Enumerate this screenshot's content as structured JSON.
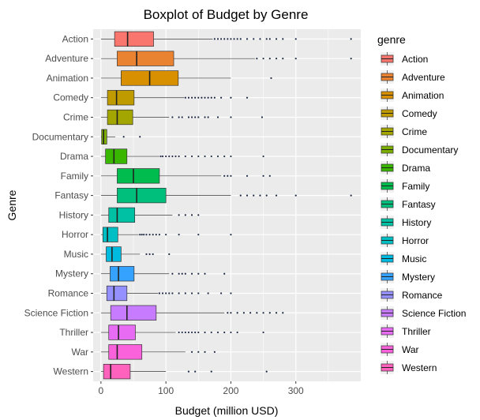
{
  "chart_data": {
    "type": "boxplot",
    "title": "Boxplot of Budget by Genre",
    "xlabel": "Budget (million USD)",
    "ylabel": "Genre",
    "xlim": [
      -12,
      400
    ],
    "xticks": [
      0,
      100,
      200,
      300
    ],
    "grid": true,
    "legend": {
      "title": "genre",
      "placement": "right"
    },
    "categories": [
      "Action",
      "Adventure",
      "Animation",
      "Comedy",
      "Crime",
      "Documentary",
      "Drama",
      "Family",
      "Fantasy",
      "History",
      "Horror",
      "Music",
      "Mystery",
      "Romance",
      "Science Fiction",
      "Thriller",
      "War",
      "Western"
    ],
    "colors": [
      "#F8766D",
      "#EA8331",
      "#D89000",
      "#C09B00",
      "#A3A500",
      "#7CAE00",
      "#39B600",
      "#00BB4E",
      "#00BF7D",
      "#00C1A3",
      "#00BFC4",
      "#00BAE0",
      "#35A2FF",
      "#9590FF",
      "#C77CFF",
      "#E76BF3",
      "#FA62DB",
      "#FF62BC"
    ],
    "legend_colors": [
      "#F8766D",
      "#EA8331",
      "#D89000",
      "#C09B00",
      "#A3A500",
      "#7CAE00",
      "#39B600",
      "#00BB4E",
      "#00BF7D",
      "#00C1A3",
      "#00BFC4",
      "#00BAE0",
      "#35A2FF",
      "#9590FF",
      "#C77CFF",
      "#E76BF3",
      "#FA62DB",
      "#FF62BC"
    ],
    "series": [
      {
        "name": "Action",
        "whisker_low": 0,
        "q1": 21,
        "median": 41,
        "q3": 81,
        "whisker_high": 172,
        "outliers": [
          175,
          180,
          185,
          190,
          195,
          200,
          205,
          210,
          215,
          225,
          235,
          245,
          255,
          260,
          270,
          280,
          300,
          385
        ]
      },
      {
        "name": "Adventure",
        "whisker_low": 0,
        "q1": 25,
        "median": 55,
        "q3": 112,
        "whisker_high": 237,
        "outliers": [
          240,
          250,
          260,
          270,
          280,
          300,
          385
        ]
      },
      {
        "name": "Animation",
        "whisker_low": 0,
        "q1": 31,
        "median": 75,
        "q3": 119,
        "whisker_high": 200,
        "outliers": [
          262
        ]
      },
      {
        "name": "Comedy",
        "whisker_low": 0,
        "q1": 10,
        "median": 24,
        "q3": 51,
        "whisker_high": 128,
        "outliers": [
          130,
          135,
          140,
          145,
          150,
          155,
          160,
          165,
          170,
          175,
          185,
          200,
          225
        ]
      },
      {
        "name": "Crime",
        "whisker_low": 0,
        "q1": 10,
        "median": 25,
        "q3": 49,
        "whisker_high": 105,
        "outliers": [
          110,
          120,
          125,
          135,
          140,
          145,
          150,
          160,
          165,
          180,
          200,
          248
        ]
      },
      {
        "name": "Documentary",
        "whisker_low": 0,
        "q1": 1,
        "median": 4,
        "q3": 9,
        "whisker_high": 22,
        "outliers": [
          35,
          60
        ]
      },
      {
        "name": "Drama",
        "whisker_low": 0,
        "q1": 7,
        "median": 20,
        "q3": 40,
        "whisker_high": 90,
        "outliers": [
          92,
          95,
          100,
          105,
          110,
          115,
          120,
          130,
          140,
          150,
          160,
          170,
          180,
          190,
          200,
          250
        ]
      },
      {
        "name": "Family",
        "whisker_low": 0,
        "q1": 25,
        "median": 50,
        "q3": 90,
        "whisker_high": 185,
        "outliers": [
          190,
          195,
          200,
          225,
          250,
          260
        ]
      },
      {
        "name": "Fantasy",
        "whisker_low": 0,
        "q1": 25,
        "median": 55,
        "q3": 100,
        "whisker_high": 200,
        "outliers": [
          215,
          225,
          235,
          245,
          255,
          270,
          300,
          385
        ]
      },
      {
        "name": "History",
        "whisker_low": 0,
        "q1": 12,
        "median": 25,
        "q3": 52,
        "whisker_high": 110,
        "outliers": [
          120,
          130,
          140,
          150
        ]
      },
      {
        "name": "Horror",
        "whisker_low": 0,
        "q1": 3,
        "median": 10,
        "q3": 26,
        "whisker_high": 58,
        "outliers": [
          60,
          63,
          66,
          70,
          75,
          80,
          85,
          90,
          100,
          120,
          150,
          200
        ]
      },
      {
        "name": "Music",
        "whisker_low": 0,
        "q1": 8,
        "median": 17,
        "q3": 31,
        "whisker_high": 60,
        "outliers": [
          70,
          75,
          80,
          105
        ]
      },
      {
        "name": "Mystery",
        "whisker_low": 0,
        "q1": 14,
        "median": 27,
        "q3": 51,
        "whisker_high": 105,
        "outliers": [
          110,
          120,
          125,
          130,
          140,
          150,
          160,
          190
        ]
      },
      {
        "name": "Romance",
        "whisker_low": 0,
        "q1": 9,
        "median": 20,
        "q3": 40,
        "whisker_high": 88,
        "outliers": [
          90,
          95,
          100,
          105,
          110,
          120,
          130,
          140,
          150,
          165,
          185,
          200
        ]
      },
      {
        "name": "Science Fiction",
        "whisker_low": 0,
        "q1": 15,
        "median": 40,
        "q3": 85,
        "whisker_high": 190,
        "outliers": [
          195,
          200,
          210,
          220,
          230,
          240,
          250,
          260,
          270,
          280
        ]
      },
      {
        "name": "Thriller",
        "whisker_low": 0,
        "q1": 12,
        "median": 27,
        "q3": 53,
        "whisker_high": 115,
        "outliers": [
          120,
          125,
          130,
          135,
          140,
          145,
          150,
          160,
          170,
          180,
          190,
          200,
          210,
          250
        ]
      },
      {
        "name": "War",
        "whisker_low": 0,
        "q1": 12,
        "median": 25,
        "q3": 63,
        "whisker_high": 130,
        "outliers": [
          140,
          150,
          160,
          175
        ]
      },
      {
        "name": "Western",
        "whisker_low": 0,
        "q1": 4,
        "median": 15,
        "q3": 45,
        "whisker_high": 100,
        "outliers": [
          135,
          145,
          170,
          255
        ]
      }
    ]
  }
}
